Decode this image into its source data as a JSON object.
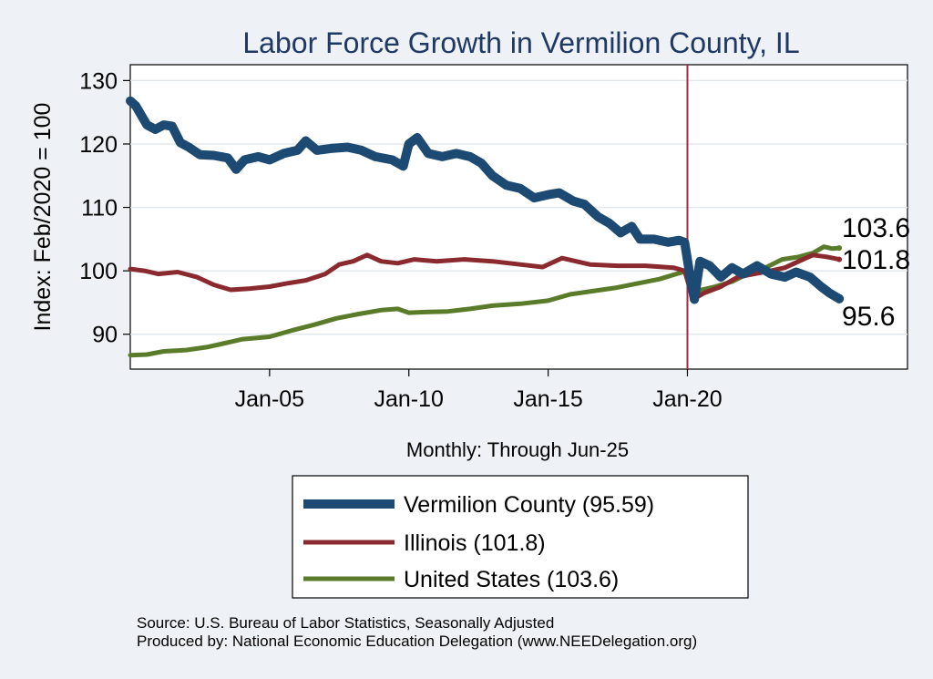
{
  "chart_data": {
    "type": "line",
    "title": "Labor Force Growth in Vermilion  County, IL",
    "ylabel": "Index: Feb/2020 = 100",
    "xlabel": "Monthly: Through Jun-25",
    "xlim": [
      2000.0,
      2027.9
    ],
    "ylim": [
      84.5,
      132.5
    ],
    "y_ticks": [
      90,
      100,
      110,
      120,
      130
    ],
    "x_ticks": [
      {
        "value": 2005.0,
        "label": "Jan-05"
      },
      {
        "value": 2010.0,
        "label": "Jan-10"
      },
      {
        "value": 2015.0,
        "label": "Jan-15"
      },
      {
        "value": 2020.0,
        "label": "Jan-20"
      }
    ],
    "vline": {
      "x": 2020.0,
      "color": "#b0263a"
    },
    "grid": true,
    "legend_position": "bottom",
    "series": [
      {
        "name": "Vermilion  County (95.59)",
        "color": "#1c4a73",
        "width": 10,
        "end_label": "95.6",
        "points": [
          [
            2000.0,
            126.8
          ],
          [
            2000.2,
            126.0
          ],
          [
            2000.4,
            124.5
          ],
          [
            2000.6,
            123.0
          ],
          [
            2000.9,
            122.3
          ],
          [
            2001.2,
            123.0
          ],
          [
            2001.5,
            122.8
          ],
          [
            2001.8,
            120.2
          ],
          [
            2002.1,
            119.5
          ],
          [
            2002.5,
            118.3
          ],
          [
            2003.0,
            118.2
          ],
          [
            2003.5,
            117.8
          ],
          [
            2003.8,
            116.0
          ],
          [
            2004.1,
            117.5
          ],
          [
            2004.6,
            118.0
          ],
          [
            2005.0,
            117.5
          ],
          [
            2005.5,
            118.5
          ],
          [
            2006.0,
            119.0
          ],
          [
            2006.3,
            120.5
          ],
          [
            2006.7,
            119.0
          ],
          [
            2007.2,
            119.3
          ],
          [
            2007.8,
            119.5
          ],
          [
            2008.3,
            119.0
          ],
          [
            2008.8,
            118.0
          ],
          [
            2009.4,
            117.5
          ],
          [
            2009.8,
            116.5
          ],
          [
            2010.0,
            120.0
          ],
          [
            2010.3,
            121.0
          ],
          [
            2010.7,
            118.5
          ],
          [
            2011.2,
            118.0
          ],
          [
            2011.7,
            118.5
          ],
          [
            2012.2,
            118.0
          ],
          [
            2012.6,
            117.0
          ],
          [
            2013.0,
            115.0
          ],
          [
            2013.5,
            113.5
          ],
          [
            2014.0,
            113.0
          ],
          [
            2014.5,
            111.5
          ],
          [
            2015.0,
            112.0
          ],
          [
            2015.4,
            112.3
          ],
          [
            2015.9,
            111.0
          ],
          [
            2016.3,
            110.5
          ],
          [
            2016.8,
            108.5
          ],
          [
            2017.2,
            107.5
          ],
          [
            2017.6,
            106.0
          ],
          [
            2018.0,
            107.0
          ],
          [
            2018.3,
            105.0
          ],
          [
            2018.8,
            105.0
          ],
          [
            2019.3,
            104.5
          ],
          [
            2019.7,
            104.8
          ],
          [
            2019.9,
            104.5
          ],
          [
            2020.1,
            99.0
          ],
          [
            2020.25,
            95.5
          ],
          [
            2020.45,
            101.5
          ],
          [
            2020.8,
            100.8
          ],
          [
            2021.2,
            99.0
          ],
          [
            2021.6,
            100.5
          ],
          [
            2022.0,
            99.5
          ],
          [
            2022.5,
            100.8
          ],
          [
            2023.0,
            99.5
          ],
          [
            2023.5,
            99.0
          ],
          [
            2023.9,
            99.8
          ],
          [
            2024.4,
            99.0
          ],
          [
            2024.8,
            97.5
          ],
          [
            2025.1,
            96.5
          ],
          [
            2025.45,
            95.6
          ]
        ]
      },
      {
        "name": "Illinois (101.8)",
        "color": "#8b2a2e",
        "width": 5,
        "end_label": "101.8",
        "points": [
          [
            2000.0,
            100.3
          ],
          [
            2000.5,
            100.0
          ],
          [
            2001.0,
            99.5
          ],
          [
            2001.7,
            99.8
          ],
          [
            2002.4,
            99.0
          ],
          [
            2003.0,
            97.8
          ],
          [
            2003.6,
            97.0
          ],
          [
            2004.3,
            97.2
          ],
          [
            2005.0,
            97.5
          ],
          [
            2005.6,
            98.0
          ],
          [
            2006.3,
            98.5
          ],
          [
            2007.0,
            99.5
          ],
          [
            2007.5,
            101.0
          ],
          [
            2008.0,
            101.5
          ],
          [
            2008.5,
            102.5
          ],
          [
            2009.0,
            101.5
          ],
          [
            2009.6,
            101.2
          ],
          [
            2010.2,
            101.8
          ],
          [
            2011.0,
            101.5
          ],
          [
            2012.0,
            101.8
          ],
          [
            2013.0,
            101.5
          ],
          [
            2014.0,
            101.0
          ],
          [
            2014.8,
            100.6
          ],
          [
            2015.5,
            102.0
          ],
          [
            2016.5,
            101.0
          ],
          [
            2017.5,
            100.8
          ],
          [
            2018.5,
            100.8
          ],
          [
            2019.5,
            100.5
          ],
          [
            2019.9,
            100.0
          ],
          [
            2020.2,
            95.5
          ],
          [
            2020.6,
            96.5
          ],
          [
            2021.2,
            97.5
          ],
          [
            2021.8,
            99.0
          ],
          [
            2022.4,
            99.5
          ],
          [
            2023.0,
            100.0
          ],
          [
            2023.5,
            100.5
          ],
          [
            2024.0,
            101.5
          ],
          [
            2024.5,
            102.5
          ],
          [
            2025.0,
            102.2
          ],
          [
            2025.45,
            101.8
          ]
        ]
      },
      {
        "name": "United States (103.6)",
        "color": "#5a7b2a",
        "width": 5,
        "end_label": "103.6",
        "points": [
          [
            2000.0,
            86.7
          ],
          [
            2000.6,
            86.8
          ],
          [
            2001.2,
            87.3
          ],
          [
            2002.0,
            87.5
          ],
          [
            2002.8,
            88.0
          ],
          [
            2003.4,
            88.6
          ],
          [
            2004.0,
            89.2
          ],
          [
            2005.0,
            89.6
          ],
          [
            2005.8,
            90.6
          ],
          [
            2006.6,
            91.5
          ],
          [
            2007.4,
            92.5
          ],
          [
            2008.2,
            93.2
          ],
          [
            2009.0,
            93.8
          ],
          [
            2009.6,
            94.0
          ],
          [
            2010.0,
            93.4
          ],
          [
            2010.6,
            93.5
          ],
          [
            2011.4,
            93.6
          ],
          [
            2012.2,
            94.0
          ],
          [
            2013.0,
            94.5
          ],
          [
            2014.0,
            94.8
          ],
          [
            2015.0,
            95.3
          ],
          [
            2015.8,
            96.3
          ],
          [
            2016.6,
            96.8
          ],
          [
            2017.4,
            97.3
          ],
          [
            2018.2,
            98.0
          ],
          [
            2019.0,
            98.7
          ],
          [
            2019.6,
            99.5
          ],
          [
            2020.0,
            100.0
          ],
          [
            2020.2,
            95.8
          ],
          [
            2020.5,
            97.0
          ],
          [
            2021.0,
            97.5
          ],
          [
            2021.6,
            98.3
          ],
          [
            2022.2,
            99.6
          ],
          [
            2022.8,
            100.5
          ],
          [
            2023.4,
            101.8
          ],
          [
            2024.0,
            102.2
          ],
          [
            2024.5,
            102.8
          ],
          [
            2024.9,
            103.8
          ],
          [
            2025.2,
            103.5
          ],
          [
            2025.45,
            103.6
          ]
        ]
      }
    ]
  },
  "source_lines": [
    "Source: U.S. Bureau of Labor Statistics, Seasonally Adjusted",
    "Produced by: National Economic Education Delegation (www.NEEDelegation.org)"
  ]
}
